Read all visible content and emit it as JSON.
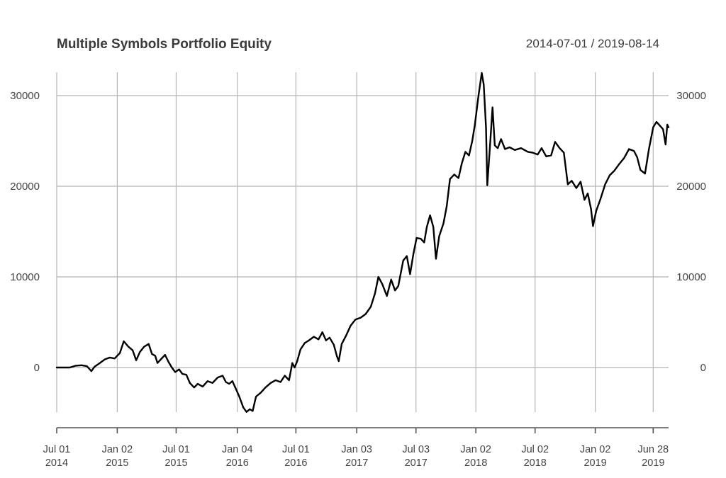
{
  "chart_data": {
    "type": "line",
    "title": "Multiple Symbols Portfolio Equity",
    "date_range": "2014-07-01 / 2019-08-14",
    "xlabel": "",
    "ylabel": "",
    "ylim": [
      -6500,
      32500
    ],
    "y_ticks": [
      "30000",
      "20000",
      "10000",
      "0"
    ],
    "x_ticks": [
      {
        "date": "2014-07-01",
        "line1": "Jul 01",
        "line2": "2014"
      },
      {
        "date": "2015-01-02",
        "line1": "Jan 02",
        "line2": "2015"
      },
      {
        "date": "2015-07-01",
        "line1": "Jul 01",
        "line2": "2015"
      },
      {
        "date": "2016-01-04",
        "line1": "Jan 04",
        "line2": "2016"
      },
      {
        "date": "2016-07-01",
        "line1": "Jul 01",
        "line2": "2016"
      },
      {
        "date": "2017-01-03",
        "line1": "Jan 03",
        "line2": "2017"
      },
      {
        "date": "2017-07-03",
        "line1": "Jul 03",
        "line2": "2017"
      },
      {
        "date": "2018-01-02",
        "line1": "Jan 02",
        "line2": "2018"
      },
      {
        "date": "2018-07-02",
        "line1": "Jul 02",
        "line2": "2018"
      },
      {
        "date": "2019-01-02",
        "line1": "Jan 02",
        "line2": "2019"
      },
      {
        "date": "2019-06-28",
        "line1": "Jun 28",
        "line2": "2019"
      }
    ],
    "grid": true,
    "line_color": "#000000",
    "series": [
      {
        "values": [
          [
            "2014-07-01",
            0
          ],
          [
            "2014-07-20",
            0
          ],
          [
            "2014-08-10",
            0
          ],
          [
            "2014-08-28",
            200
          ],
          [
            "2014-09-15",
            250
          ],
          [
            "2014-10-01",
            150
          ],
          [
            "2014-10-15",
            -400
          ],
          [
            "2014-10-25",
            100
          ],
          [
            "2014-11-10",
            500
          ],
          [
            "2014-11-25",
            900
          ],
          [
            "2014-12-10",
            1100
          ],
          [
            "2014-12-25",
            1000
          ],
          [
            "2015-01-10",
            1600
          ],
          [
            "2015-01-22",
            2900
          ],
          [
            "2015-02-05",
            2300
          ],
          [
            "2015-02-18",
            1900
          ],
          [
            "2015-03-01",
            800
          ],
          [
            "2015-03-12",
            1700
          ],
          [
            "2015-03-25",
            2300
          ],
          [
            "2015-04-08",
            2600
          ],
          [
            "2015-04-18",
            1500
          ],
          [
            "2015-04-28",
            1300
          ],
          [
            "2015-05-05",
            500
          ],
          [
            "2015-05-15",
            900
          ],
          [
            "2015-05-28",
            1400
          ],
          [
            "2015-06-08",
            600
          ],
          [
            "2015-06-18",
            0
          ],
          [
            "2015-06-28",
            -500
          ],
          [
            "2015-07-10",
            -200
          ],
          [
            "2015-07-20",
            -700
          ],
          [
            "2015-08-01",
            -800
          ],
          [
            "2015-08-12",
            -1700
          ],
          [
            "2015-08-25",
            -2200
          ],
          [
            "2015-09-05",
            -1800
          ],
          [
            "2015-09-20",
            -2100
          ],
          [
            "2015-10-05",
            -1500
          ],
          [
            "2015-10-20",
            -1700
          ],
          [
            "2015-11-05",
            -1100
          ],
          [
            "2015-11-20",
            -900
          ],
          [
            "2015-11-30",
            -1600
          ],
          [
            "2015-12-10",
            -1800
          ],
          [
            "2015-12-20",
            -1500
          ],
          [
            "2015-12-30",
            -2300
          ],
          [
            "2016-01-10",
            -3200
          ],
          [
            "2016-01-22",
            -4400
          ],
          [
            "2016-02-01",
            -4900
          ],
          [
            "2016-02-11",
            -4600
          ],
          [
            "2016-02-20",
            -4800
          ],
          [
            "2016-03-01",
            -3200
          ],
          [
            "2016-03-15",
            -2800
          ],
          [
            "2016-03-30",
            -2200
          ],
          [
            "2016-04-15",
            -1700
          ],
          [
            "2016-04-30",
            -1400
          ],
          [
            "2016-05-15",
            -1600
          ],
          [
            "2016-05-28",
            -900
          ],
          [
            "2016-06-10",
            -1400
          ],
          [
            "2016-06-20",
            500
          ],
          [
            "2016-06-27",
            0
          ],
          [
            "2016-07-05",
            700
          ],
          [
            "2016-07-15",
            2000
          ],
          [
            "2016-07-28",
            2700
          ],
          [
            "2016-08-10",
            3000
          ],
          [
            "2016-08-25",
            3400
          ],
          [
            "2016-09-08",
            3100
          ],
          [
            "2016-09-20",
            3900
          ],
          [
            "2016-10-01",
            3000
          ],
          [
            "2016-10-12",
            3300
          ],
          [
            "2016-10-25",
            2500
          ],
          [
            "2016-11-03",
            1300
          ],
          [
            "2016-11-09",
            700
          ],
          [
            "2016-11-18",
            2600
          ],
          [
            "2016-12-01",
            3500
          ],
          [
            "2016-12-15",
            4600
          ],
          [
            "2016-12-30",
            5300
          ],
          [
            "2017-01-15",
            5500
          ],
          [
            "2017-01-30",
            5900
          ],
          [
            "2017-02-15",
            6700
          ],
          [
            "2017-02-28",
            8200
          ],
          [
            "2017-03-10",
            10000
          ],
          [
            "2017-03-22",
            9200
          ],
          [
            "2017-04-05",
            7900
          ],
          [
            "2017-04-18",
            9700
          ],
          [
            "2017-04-30",
            8500
          ],
          [
            "2017-05-10",
            9000
          ],
          [
            "2017-05-25",
            11800
          ],
          [
            "2017-06-05",
            12300
          ],
          [
            "2017-06-15",
            10300
          ],
          [
            "2017-06-25",
            12500
          ],
          [
            "2017-07-05",
            14300
          ],
          [
            "2017-07-18",
            14200
          ],
          [
            "2017-07-28",
            13800
          ],
          [
            "2017-08-05",
            15500
          ],
          [
            "2017-08-15",
            16800
          ],
          [
            "2017-08-25",
            15500
          ],
          [
            "2017-09-02",
            12000
          ],
          [
            "2017-09-12",
            14500
          ],
          [
            "2017-09-25",
            15900
          ],
          [
            "2017-10-05",
            17800
          ],
          [
            "2017-10-15",
            20800
          ],
          [
            "2017-10-28",
            21300
          ],
          [
            "2017-11-10",
            20900
          ],
          [
            "2017-11-20",
            22500
          ],
          [
            "2017-12-01",
            23800
          ],
          [
            "2017-12-12",
            23400
          ],
          [
            "2017-12-22",
            25000
          ],
          [
            "2017-12-30",
            26800
          ],
          [
            "2018-01-10",
            30000
          ],
          [
            "2018-01-20",
            32500
          ],
          [
            "2018-01-26",
            31200
          ],
          [
            "2018-02-02",
            26500
          ],
          [
            "2018-02-06",
            20100
          ],
          [
            "2018-02-14",
            24300
          ],
          [
            "2018-02-22",
            28700
          ],
          [
            "2018-03-01",
            24500
          ],
          [
            "2018-03-10",
            24200
          ],
          [
            "2018-03-20",
            25200
          ],
          [
            "2018-04-01",
            24100
          ],
          [
            "2018-04-15",
            24300
          ],
          [
            "2018-05-01",
            24000
          ],
          [
            "2018-05-20",
            24200
          ],
          [
            "2018-06-10",
            23800
          ],
          [
            "2018-06-25",
            23700
          ],
          [
            "2018-07-10",
            23500
          ],
          [
            "2018-07-22",
            24200
          ],
          [
            "2018-08-05",
            23300
          ],
          [
            "2018-08-20",
            23400
          ],
          [
            "2018-09-01",
            24900
          ],
          [
            "2018-09-15",
            24200
          ],
          [
            "2018-09-28",
            23700
          ],
          [
            "2018-10-10",
            20200
          ],
          [
            "2018-10-22",
            20600
          ],
          [
            "2018-11-05",
            19800
          ],
          [
            "2018-11-18",
            20500
          ],
          [
            "2018-11-30",
            18500
          ],
          [
            "2018-12-10",
            19200
          ],
          [
            "2018-12-20",
            17500
          ],
          [
            "2018-12-26",
            15600
          ],
          [
            "2019-01-05",
            17300
          ],
          [
            "2019-01-18",
            18600
          ],
          [
            "2019-02-01",
            20200
          ],
          [
            "2019-02-15",
            21200
          ],
          [
            "2019-03-01",
            21700
          ],
          [
            "2019-03-15",
            22400
          ],
          [
            "2019-03-31",
            23100
          ],
          [
            "2019-04-15",
            24100
          ],
          [
            "2019-04-30",
            23900
          ],
          [
            "2019-05-10",
            23200
          ],
          [
            "2019-05-20",
            21800
          ],
          [
            "2019-06-03",
            21400
          ],
          [
            "2019-06-15",
            24100
          ],
          [
            "2019-06-28",
            26500
          ],
          [
            "2019-07-08",
            27100
          ],
          [
            "2019-07-18",
            26700
          ],
          [
            "2019-07-28",
            26300
          ],
          [
            "2019-08-05",
            24600
          ],
          [
            "2019-08-10",
            26800
          ],
          [
            "2019-08-14",
            26500
          ]
        ]
      }
    ]
  }
}
